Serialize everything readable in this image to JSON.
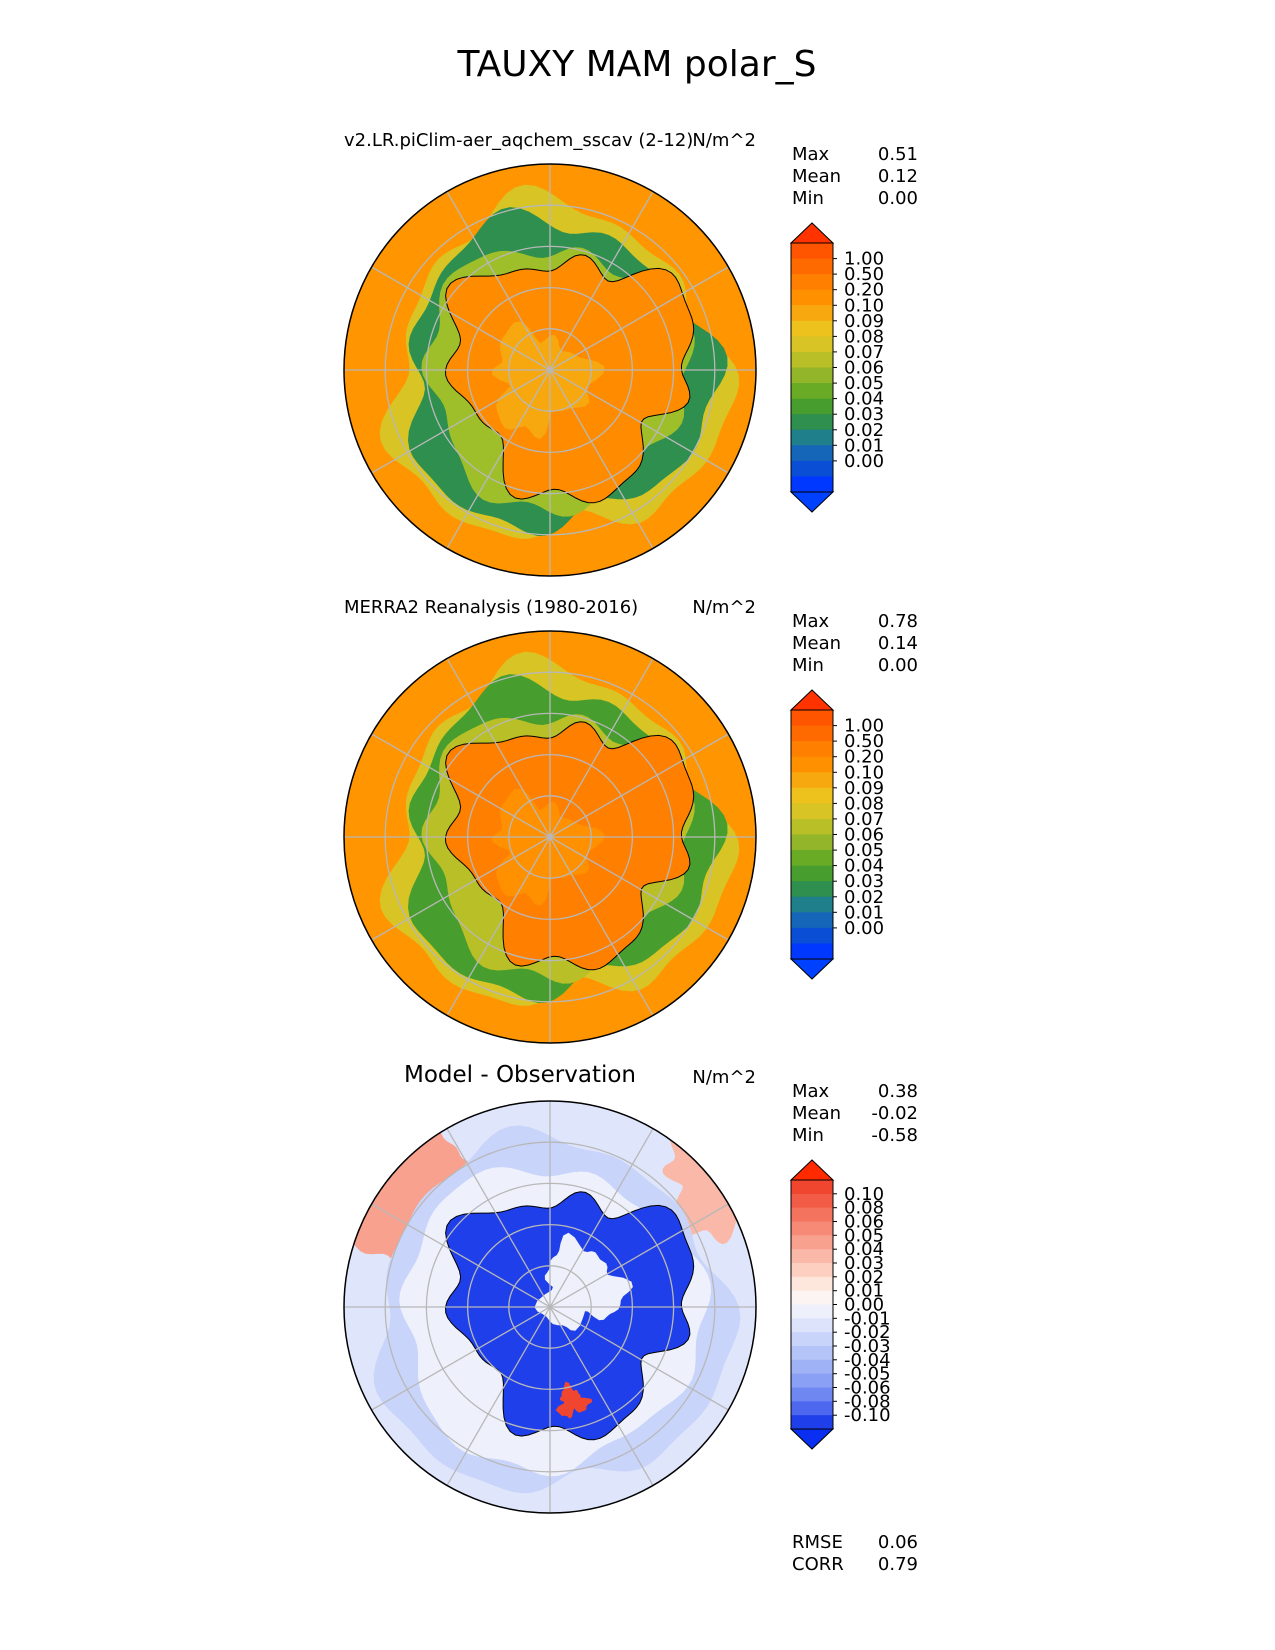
{
  "figure": {
    "title": "TAUXY MAM polar_S"
  },
  "chart_data": [
    {
      "type": "heatmap",
      "projection": "south-polar-stereographic",
      "title": "v2.LR.piClim-aer_aqchem_sscav (2-12)",
      "units": "N/m^2",
      "stats": {
        "max_label": "Max",
        "max": "0.51",
        "mean_label": "Mean",
        "mean": "0.12",
        "min_label": "Min",
        "min": "0.00"
      },
      "colorbar": {
        "extend": "both",
        "labels": [
          "1.00",
          "0.50",
          "0.20",
          "0.10",
          "0.09",
          "0.08",
          "0.07",
          "0.06",
          "0.05",
          "0.04",
          "0.03",
          "0.02",
          "0.01",
          "0.00"
        ],
        "colors": [
          "#ff5500",
          "#ff6a00",
          "#ff7f00",
          "#ff9000",
          "#f7a80f",
          "#eec21d",
          "#d8c424",
          "#b8bf27",
          "#93b52a",
          "#6aab26",
          "#479e2e",
          "#2f8f4f",
          "#1f7f8a",
          "#1565b8",
          "#0a4ed6",
          "#0038ff"
        ],
        "over_color": "#ff3300",
        "under_color": "#0040ff"
      },
      "field_colors": {
        "ocean": "#ff9500",
        "band": "#2f8f4f",
        "band_inner": "#9fbf2a",
        "land": "#ff8c00",
        "coast": "#000000"
      }
    },
    {
      "type": "heatmap",
      "projection": "south-polar-stereographic",
      "title": "MERRA2 Reanalysis (1980-2016)",
      "units": "N/m^2",
      "stats": {
        "max_label": "Max",
        "max": "0.78",
        "mean_label": "Mean",
        "mean": "0.14",
        "min_label": "Min",
        "min": "0.00"
      },
      "colorbar": {
        "extend": "both",
        "labels": [
          "1.00",
          "0.50",
          "0.20",
          "0.10",
          "0.09",
          "0.08",
          "0.07",
          "0.06",
          "0.05",
          "0.04",
          "0.03",
          "0.02",
          "0.01",
          "0.00"
        ],
        "colors": [
          "#ff5500",
          "#ff6a00",
          "#ff7f00",
          "#ff9000",
          "#f7a80f",
          "#eec21d",
          "#d8c424",
          "#b8bf27",
          "#93b52a",
          "#6aab26",
          "#479e2e",
          "#2f8f4f",
          "#1f7f8a",
          "#1565b8",
          "#0a4ed6",
          "#0038ff"
        ],
        "over_color": "#ff3300",
        "under_color": "#0040ff"
      },
      "field_colors": {
        "ocean": "#ff9500",
        "band": "#479e2e",
        "band_inner": "#b8bf27",
        "land": "#ff7f00",
        "coast": "#000000"
      }
    },
    {
      "type": "heatmap",
      "projection": "south-polar-stereographic",
      "title": "Model - Observation",
      "units": "N/m^2",
      "stats": {
        "max_label": "Max",
        "max": "0.38",
        "mean_label": "Mean",
        "mean": "-0.02",
        "min_label": "Min",
        "min": "-0.58"
      },
      "metrics": {
        "rmse_label": "RMSE",
        "rmse": "0.06",
        "corr_label": "CORR",
        "corr": "0.79"
      },
      "colorbar": {
        "extend": "both",
        "labels": [
          "0.10",
          "0.08",
          "0.06",
          "0.05",
          "0.04",
          "0.03",
          "0.02",
          "0.01",
          "0.00",
          "-0.01",
          "-0.02",
          "-0.03",
          "-0.04",
          "-0.05",
          "-0.06",
          "-0.08",
          "-0.10"
        ],
        "colors": [
          "#f0452f",
          "#f25c46",
          "#f4735e",
          "#f68a76",
          "#f8a18f",
          "#fab8a8",
          "#fccfc1",
          "#fde6dc",
          "#fbf4f2",
          "#eef1fc",
          "#dde3fb",
          "#c9d4fa",
          "#b4c3f8",
          "#9fb2f6",
          "#8aa0f4",
          "#6f88f1",
          "#4d68ee",
          "#1f3fea"
        ],
        "over_color": "#ff2a00",
        "under_color": "#0a2ff0"
      },
      "field_colors": {
        "ocean": "#dfe6fb",
        "band": "#c9d4fa",
        "band_inner": "#eef1fc",
        "land": "#1f3fea",
        "coast": "#000000"
      }
    }
  ]
}
